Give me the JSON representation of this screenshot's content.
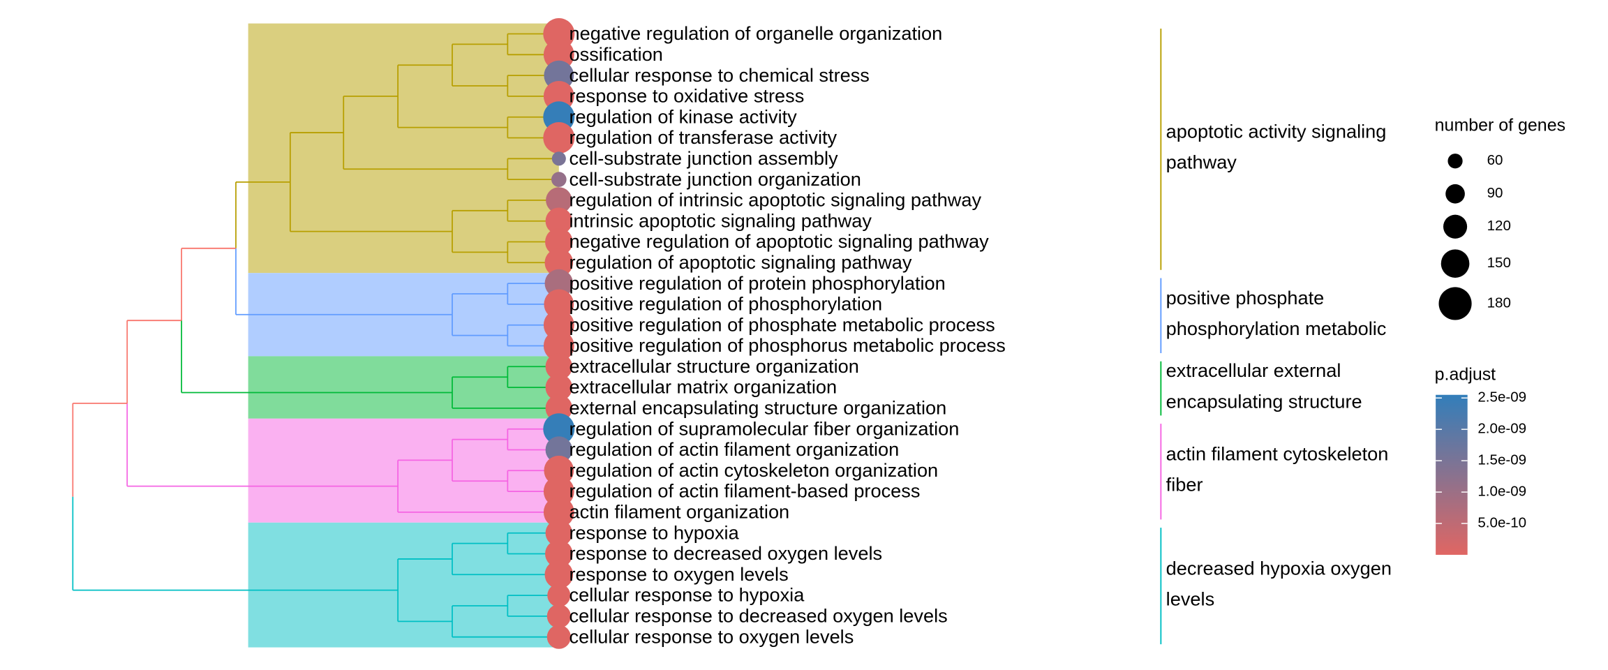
{
  "chart_data": {
    "type": "treeplot",
    "categories": [
      "negative regulation of organelle organization",
      "ossification",
      "cellular response to chemical stress",
      "response to oxidative stress",
      "regulation of kinase activity",
      "regulation of transferase activity",
      "cell-substrate junction assembly",
      "cell-substrate junction organization",
      "regulation of intrinsic apoptotic signaling pathway",
      "intrinsic apoptotic signaling pathway",
      "negative regulation of apoptotic signaling pathway",
      "regulation of apoptotic signaling pathway",
      "positive regulation of protein phosphorylation",
      "positive regulation of phosphorylation",
      "positive regulation of phosphate metabolic process",
      "positive regulation of phosphorus metabolic process",
      "extracellular structure organization",
      "extracellular matrix organization",
      "external encapsulating structure organization",
      "regulation of supramolecular fiber organization",
      "regulation of actin filament organization",
      "regulation of actin cytoskeleton organization",
      "regulation of actin filament-based process",
      "actin filament organization",
      "response to hypoxia",
      "response to decreased oxygen levels",
      "response to oxygen levels",
      "cellular response to hypoxia",
      "cellular response to decreased oxygen levels",
      "cellular response to oxygen levels"
    ],
    "counts": [
      170,
      165,
      160,
      165,
      170,
      170,
      55,
      62,
      135,
      140,
      145,
      150,
      150,
      160,
      165,
      165,
      140,
      140,
      140,
      170,
      140,
      160,
      165,
      165,
      140,
      145,
      150,
      115,
      120,
      120
    ],
    "p_adjust": [
      1e-11,
      1e-11,
      1.6e-09,
      2e-11,
      2.5e-09,
      1e-11,
      1.5e-09,
      1.1e-09,
      6e-10,
      2e-11,
      1e-11,
      1e-11,
      8e-10,
      1e-11,
      1e-11,
      1e-11,
      1e-11,
      1e-11,
      1e-11,
      2.5e-09,
      1.6e-09,
      1e-11,
      1e-11,
      1e-11,
      1e-11,
      1e-11,
      1e-11,
      1e-11,
      1e-11,
      1e-11
    ],
    "clusters": [
      {
        "label": [
          "apoptotic activity signaling",
          "pathway"
        ],
        "color": "#B79F00",
        "band_color": "#DACF7F",
        "size": 12
      },
      {
        "label": [
          "positive phosphate",
          "phosphorylation metabolic"
        ],
        "color": "#619CFF",
        "band_color": "#B0CDFF",
        "size": 4
      },
      {
        "label": [
          "extracellular external",
          "encapsulating structure"
        ],
        "color": "#00BA38",
        "band_color": "#80DC9B",
        "size": 3
      },
      {
        "label": [
          "actin filament cytoskeleton",
          "fiber"
        ],
        "color": "#F564E3",
        "band_color": "#FAB1F1",
        "size": 5
      },
      {
        "label": [
          "decreased hypoxia oxygen",
          "levels"
        ],
        "color": "#00BFC4",
        "band_color": "#80DFE1",
        "size": 6
      }
    ],
    "size_legend_title": "number of genes",
    "size_ticks": [
      60,
      90,
      120,
      150,
      180
    ],
    "color_legend_title": "p.adjust",
    "color_low": "#E06663",
    "color_high": "#327EBA",
    "clim": [
      0,
      2.55e-09
    ],
    "color_ticks": [
      {
        "value": 2.5e-09,
        "label": "2.5e-09"
      },
      {
        "value": 2e-09,
        "label": "2.0e-09"
      },
      {
        "value": 1.5e-09,
        "label": "1.5e-09"
      },
      {
        "value": 1e-09,
        "label": "1.0e-09"
      },
      {
        "value": 5e-10,
        "label": "5.0e-10"
      }
    ]
  }
}
